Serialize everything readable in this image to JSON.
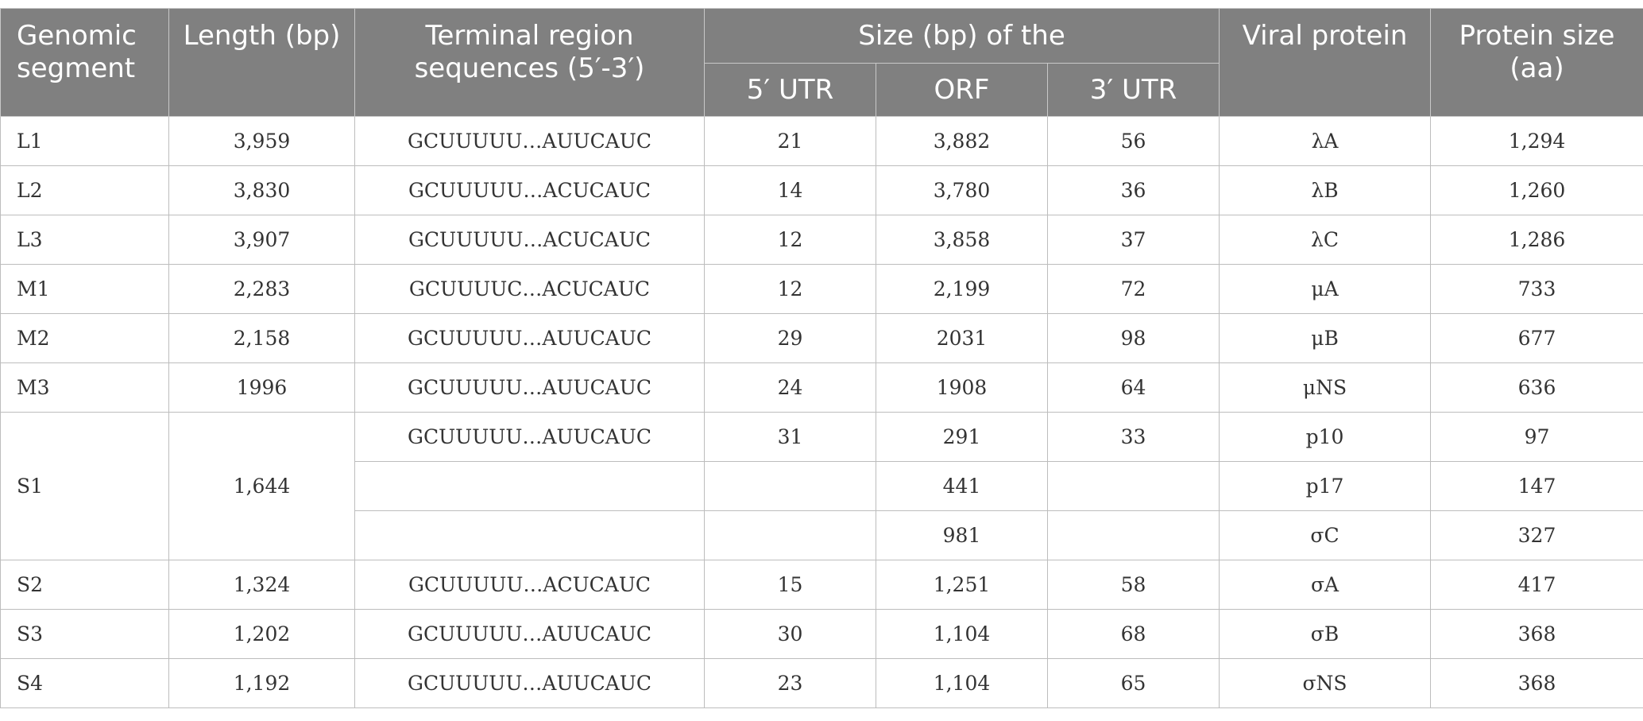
{
  "header": {
    "genomic_segment": "Genomic segment",
    "length": "Length (bp)",
    "terminal_region": "Terminal region sequences (5′-3′)",
    "size_group": "Size (bp) of the",
    "utr5": "5′ UTR",
    "orf": "ORF",
    "utr3": "3′ UTR",
    "viral_protein": "Viral protein",
    "protein_size": "Protein size (aa)"
  },
  "rows": [
    {
      "segment": "L1",
      "length": "3,959",
      "terminal": "GCUUUUU…AUUCAUC",
      "utr5": "21",
      "orf": "3,882",
      "utr3": "56",
      "protein": "λA",
      "size": "1,294"
    },
    {
      "segment": "L2",
      "length": "3,830",
      "terminal": "GCUUUUU…ACUCAUC",
      "utr5": "14",
      "orf": "3,780",
      "utr3": "36",
      "protein": "λB",
      "size": "1,260"
    },
    {
      "segment": "L3",
      "length": "3,907",
      "terminal": "GCUUUUU…ACUCAUC",
      "utr5": "12",
      "orf": "3,858",
      "utr3": "37",
      "protein": "λC",
      "size": "1,286"
    },
    {
      "segment": "M1",
      "length": "2,283",
      "terminal": "GCUUUUC…ACUCAUC",
      "utr5": "12",
      "orf": "2,199",
      "utr3": "72",
      "protein": "μA",
      "size": "733"
    },
    {
      "segment": "M2",
      "length": "2,158",
      "terminal": "GCUUUUU…AUUCAUC",
      "utr5": "29",
      "orf": "2031",
      "utr3": "98",
      "protein": "μB",
      "size": "677"
    },
    {
      "segment": "M3",
      "length": "1996",
      "terminal": "GCUUUUU…AUUCAUC",
      "utr5": "24",
      "orf": "1908",
      "utr3": "64",
      "protein": "μNS",
      "size": "636"
    }
  ],
  "s1": {
    "segment": "S1",
    "length": "1,644",
    "sub": [
      {
        "terminal": "GCUUUUU…AUUCAUC",
        "utr5": "31",
        "orf": "291",
        "utr3": "33",
        "protein": "p10",
        "size": "97"
      },
      {
        "terminal": "",
        "utr5": "",
        "orf": "441",
        "utr3": "",
        "protein": "p17",
        "size": "147"
      },
      {
        "terminal": "",
        "utr5": "",
        "orf": "981",
        "utr3": "",
        "protein": "σC",
        "size": "327"
      }
    ]
  },
  "rows2": [
    {
      "segment": "S2",
      "length": "1,324",
      "terminal": "GCUUUUU…ACUCAUC",
      "utr5": "15",
      "orf": "1,251",
      "utr3": "58",
      "protein": "σA",
      "size": "417"
    },
    {
      "segment": "S3",
      "length": "1,202",
      "terminal": "GCUUUUU…AUUCAUC",
      "utr5": "30",
      "orf": "1,104",
      "utr3": "68",
      "protein": "σB",
      "size": "368"
    },
    {
      "segment": "S4",
      "length": "1,192",
      "terminal": "GCUUUUU…AUUCAUC",
      "utr5": "23",
      "orf": "1,104",
      "utr3": "65",
      "protein": "σNS",
      "size": "368"
    }
  ]
}
